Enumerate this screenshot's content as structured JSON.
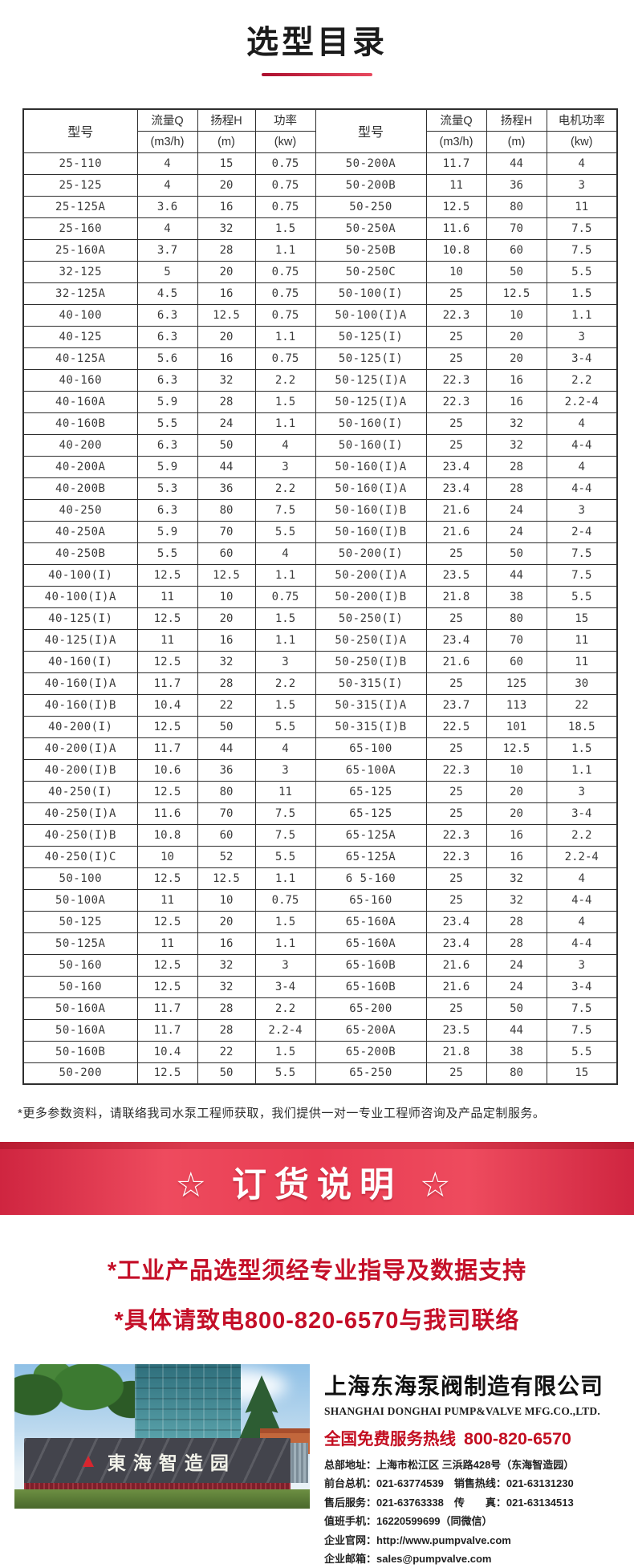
{
  "page": {
    "title": "选型目录",
    "note": "*更多参数资料，请联络我司水泵工程师获取，我们提供一对一专业工程师咨询及产品定制服务。",
    "banner": "☆ 订货说明 ☆",
    "notice_line1": "*工业产品选型须经专业指导及数据支持",
    "notice_line2": "*具体请致电800-820-6570与我司联络",
    "accent_red": "#e83c52",
    "notice_red": "#c40f28"
  },
  "table": {
    "headers": {
      "model": "型号",
      "left": {
        "flow": "流量Q",
        "flow_unit": "(m3/h)",
        "head": "扬程H",
        "head_unit": "(m)",
        "power": "功率",
        "power_unit": "(kw)"
      },
      "right": {
        "flow": "流量Q",
        "flow_unit": "(m3/h)",
        "head": "扬程H",
        "head_unit": "(m)",
        "power": "电机功率",
        "power_unit": "(kw)"
      }
    },
    "rows": [
      [
        "25-110",
        "4",
        "15",
        "0.75",
        "50-200A",
        "11.7",
        "44",
        "4"
      ],
      [
        "25-125",
        "4",
        "20",
        "0.75",
        "50-200B",
        "11",
        "36",
        "3"
      ],
      [
        "25-125A",
        "3.6",
        "16",
        "0.75",
        "50-250",
        "12.5",
        "80",
        "11"
      ],
      [
        "25-160",
        "4",
        "32",
        "1.5",
        "50-250A",
        "11.6",
        "70",
        "7.5"
      ],
      [
        "25-160A",
        "3.7",
        "28",
        "1.1",
        "50-250B",
        "10.8",
        "60",
        "7.5"
      ],
      [
        "32-125",
        "5",
        "20",
        "0.75",
        "50-250C",
        "10",
        "50",
        "5.5"
      ],
      [
        "32-125A",
        "4.5",
        "16",
        "0.75",
        "50-100(I)",
        "25",
        "12.5",
        "1.5"
      ],
      [
        "40-100",
        "6.3",
        "12.5",
        "0.75",
        "50-100(I)A",
        "22.3",
        "10",
        "1.1"
      ],
      [
        "40-125",
        "6.3",
        "20",
        "1.1",
        "50-125(I)",
        "25",
        "20",
        "3"
      ],
      [
        "40-125A",
        "5.6",
        "16",
        "0.75",
        "50-125(I)",
        "25",
        "20",
        "3-4"
      ],
      [
        "40-160",
        "6.3",
        "32",
        "2.2",
        "50-125(I)A",
        "22.3",
        "16",
        "2.2"
      ],
      [
        "40-160A",
        "5.9",
        "28",
        "1.5",
        "50-125(I)A",
        "22.3",
        "16",
        "2.2-4"
      ],
      [
        "40-160B",
        "5.5",
        "24",
        "1.1",
        "50-160(I)",
        "25",
        "32",
        "4"
      ],
      [
        "40-200",
        "6.3",
        "50",
        "4",
        "50-160(I)",
        "25",
        "32",
        "4-4"
      ],
      [
        "40-200A",
        "5.9",
        "44",
        "3",
        "50-160(I)A",
        "23.4",
        "28",
        "4"
      ],
      [
        "40-200B",
        "5.3",
        "36",
        "2.2",
        "50-160(I)A",
        "23.4",
        "28",
        "4-4"
      ],
      [
        "40-250",
        "6.3",
        "80",
        "7.5",
        "50-160(I)B",
        "21.6",
        "24",
        "3"
      ],
      [
        "40-250A",
        "5.9",
        "70",
        "5.5",
        "50-160(I)B",
        "21.6",
        "24",
        "2-4"
      ],
      [
        "40-250B",
        "5.5",
        "60",
        "4",
        "50-200(I)",
        "25",
        "50",
        "7.5"
      ],
      [
        "40-100(I)",
        "12.5",
        "12.5",
        "1.1",
        "50-200(I)A",
        "23.5",
        "44",
        "7.5"
      ],
      [
        "40-100(I)A",
        "11",
        "10",
        "0.75",
        "50-200(I)B",
        "21.8",
        "38",
        "5.5"
      ],
      [
        "40-125(I)",
        "12.5",
        "20",
        "1.5",
        "50-250(I)",
        "25",
        "80",
        "15"
      ],
      [
        "40-125(I)A",
        "11",
        "16",
        "1.1",
        "50-250(I)A",
        "23.4",
        "70",
        "11"
      ],
      [
        "40-160(I)",
        "12.5",
        "32",
        "3",
        "50-250(I)B",
        "21.6",
        "60",
        "11"
      ],
      [
        "40-160(I)A",
        "11.7",
        "28",
        "2.2",
        "50-315(I)",
        "25",
        "125",
        "30"
      ],
      [
        "40-160(I)B",
        "10.4",
        "22",
        "1.5",
        "50-315(I)A",
        "23.7",
        "113",
        "22"
      ],
      [
        "40-200(I)",
        "12.5",
        "50",
        "5.5",
        "50-315(I)B",
        "22.5",
        "101",
        "18.5"
      ],
      [
        "40-200(I)A",
        "11.7",
        "44",
        "4",
        "65-100",
        "25",
        "12.5",
        "1.5"
      ],
      [
        "40-200(I)B",
        "10.6",
        "36",
        "3",
        "65-100A",
        "22.3",
        "10",
        "1.1"
      ],
      [
        "40-250(I)",
        "12.5",
        "80",
        "11",
        "65-125",
        "25",
        "20",
        "3"
      ],
      [
        "40-250(I)A",
        "11.6",
        "70",
        "7.5",
        "65-125",
        "25",
        "20",
        "3-4"
      ],
      [
        "40-250(I)B",
        "10.8",
        "60",
        "7.5",
        "65-125A",
        "22.3",
        "16",
        "2.2"
      ],
      [
        "40-250(I)C",
        "10",
        "52",
        "5.5",
        "65-125A",
        "22.3",
        "16",
        "2.2-4"
      ],
      [
        "50-100",
        "12.5",
        "12.5",
        "1.1",
        "6 5-160",
        "25",
        "32",
        "4"
      ],
      [
        "50-100A",
        "11",
        "10",
        "0.75",
        "65-160",
        "25",
        "32",
        "4-4"
      ],
      [
        "50-125",
        "12.5",
        "20",
        "1.5",
        "65-160A",
        "23.4",
        "28",
        "4"
      ],
      [
        "50-125A",
        "11",
        "16",
        "1.1",
        "65-160A",
        "23.4",
        "28",
        "4-4"
      ],
      [
        "50-160",
        "12.5",
        "32",
        "3",
        "65-160B",
        "21.6",
        "24",
        "3"
      ],
      [
        "50-160",
        "12.5",
        "32",
        "3-4",
        "65-160B",
        "21.6",
        "24",
        "3-4"
      ],
      [
        "50-160A",
        "11.7",
        "28",
        "2.2",
        "65-200",
        "25",
        "50",
        "7.5"
      ],
      [
        "50-160A",
        "11.7",
        "28",
        "2.2-4",
        "65-200A",
        "23.5",
        "44",
        "7.5"
      ],
      [
        "50-160B",
        "10.4",
        "22",
        "1.5",
        "65-200B",
        "21.8",
        "38",
        "5.5"
      ],
      [
        "50-200",
        "12.5",
        "50",
        "5.5",
        "65-250",
        "25",
        "80",
        "15"
      ]
    ]
  },
  "footer": {
    "park_sign": "東海智造园",
    "logo_glyph": "▲",
    "company_cn": "上海东海泵阀制造有限公司",
    "company_en": "SHANGHAI DONGHAI PUMP&VALVE MFG.CO.,LTD.",
    "hotline_label": "全国免费服务热线",
    "hotline_number": "800-820-6570",
    "contacts": [
      "总部地址：上海市松江区 三浜路428号（东海智造园）",
      "前台总机：021-63774539　销售热线：021-63131230",
      "售后服务：021-63763338　传　　真：021-63134513",
      "值班手机：16220599699（同微信）",
      "企业官网：http://www.pumpvalve.com",
      "企业邮箱：sales@pumpvalve.com"
    ]
  }
}
